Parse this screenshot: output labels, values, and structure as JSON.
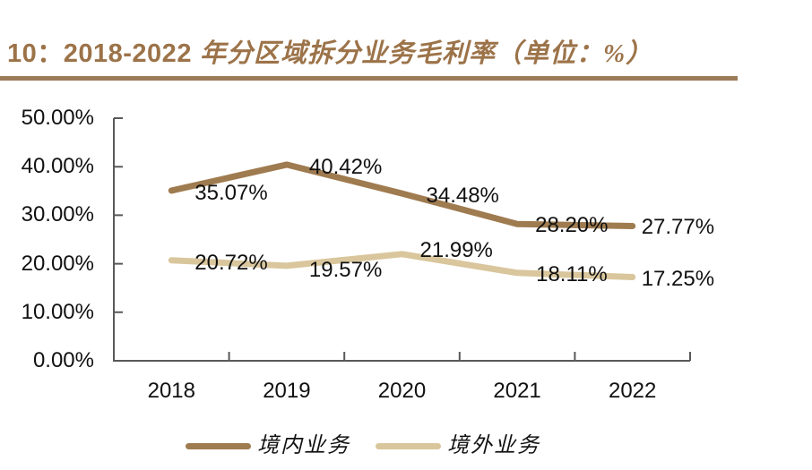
{
  "figure": {
    "title_prefix": "10：2018-2022",
    "title_suffix": "年分区域拆分业务毛利率（单位：%）"
  },
  "colors": {
    "title": "#9C7349",
    "rule": "#9A7A58",
    "axis": "#595959",
    "label_text": "#111111"
  },
  "chart_data": {
    "type": "line",
    "title": "10：2018-2022 年分区域拆分业务毛利率（单位：%）",
    "categories": [
      "2018",
      "2019",
      "2020",
      "2021",
      "2022"
    ],
    "series": [
      {
        "name": "境内业务",
        "color": "#9F7B50",
        "values": [
          35.07,
          40.42,
          34.48,
          28.2,
          27.77
        ],
        "labels": [
          "35.07%",
          "40.42%",
          "34.48%",
          "28.20%",
          "27.77%"
        ]
      },
      {
        "name": "境外业务",
        "color": "#D9C69C",
        "values": [
          20.72,
          19.57,
          21.99,
          18.11,
          17.25
        ],
        "labels": [
          "20.72%",
          "19.57%",
          "21.99%",
          "18.11%",
          "17.25%"
        ]
      }
    ],
    "y_axis": {
      "tick_labels": [
        "50.00%",
        "40.00%",
        "30.00%",
        "20.00%",
        "10.00%",
        "0.00%"
      ],
      "tick_values": [
        50,
        40,
        30,
        20,
        10,
        0
      ],
      "min": 0,
      "max": 50
    },
    "xlabel": "",
    "ylabel": "",
    "grid": false,
    "legend_position": "bottom"
  }
}
